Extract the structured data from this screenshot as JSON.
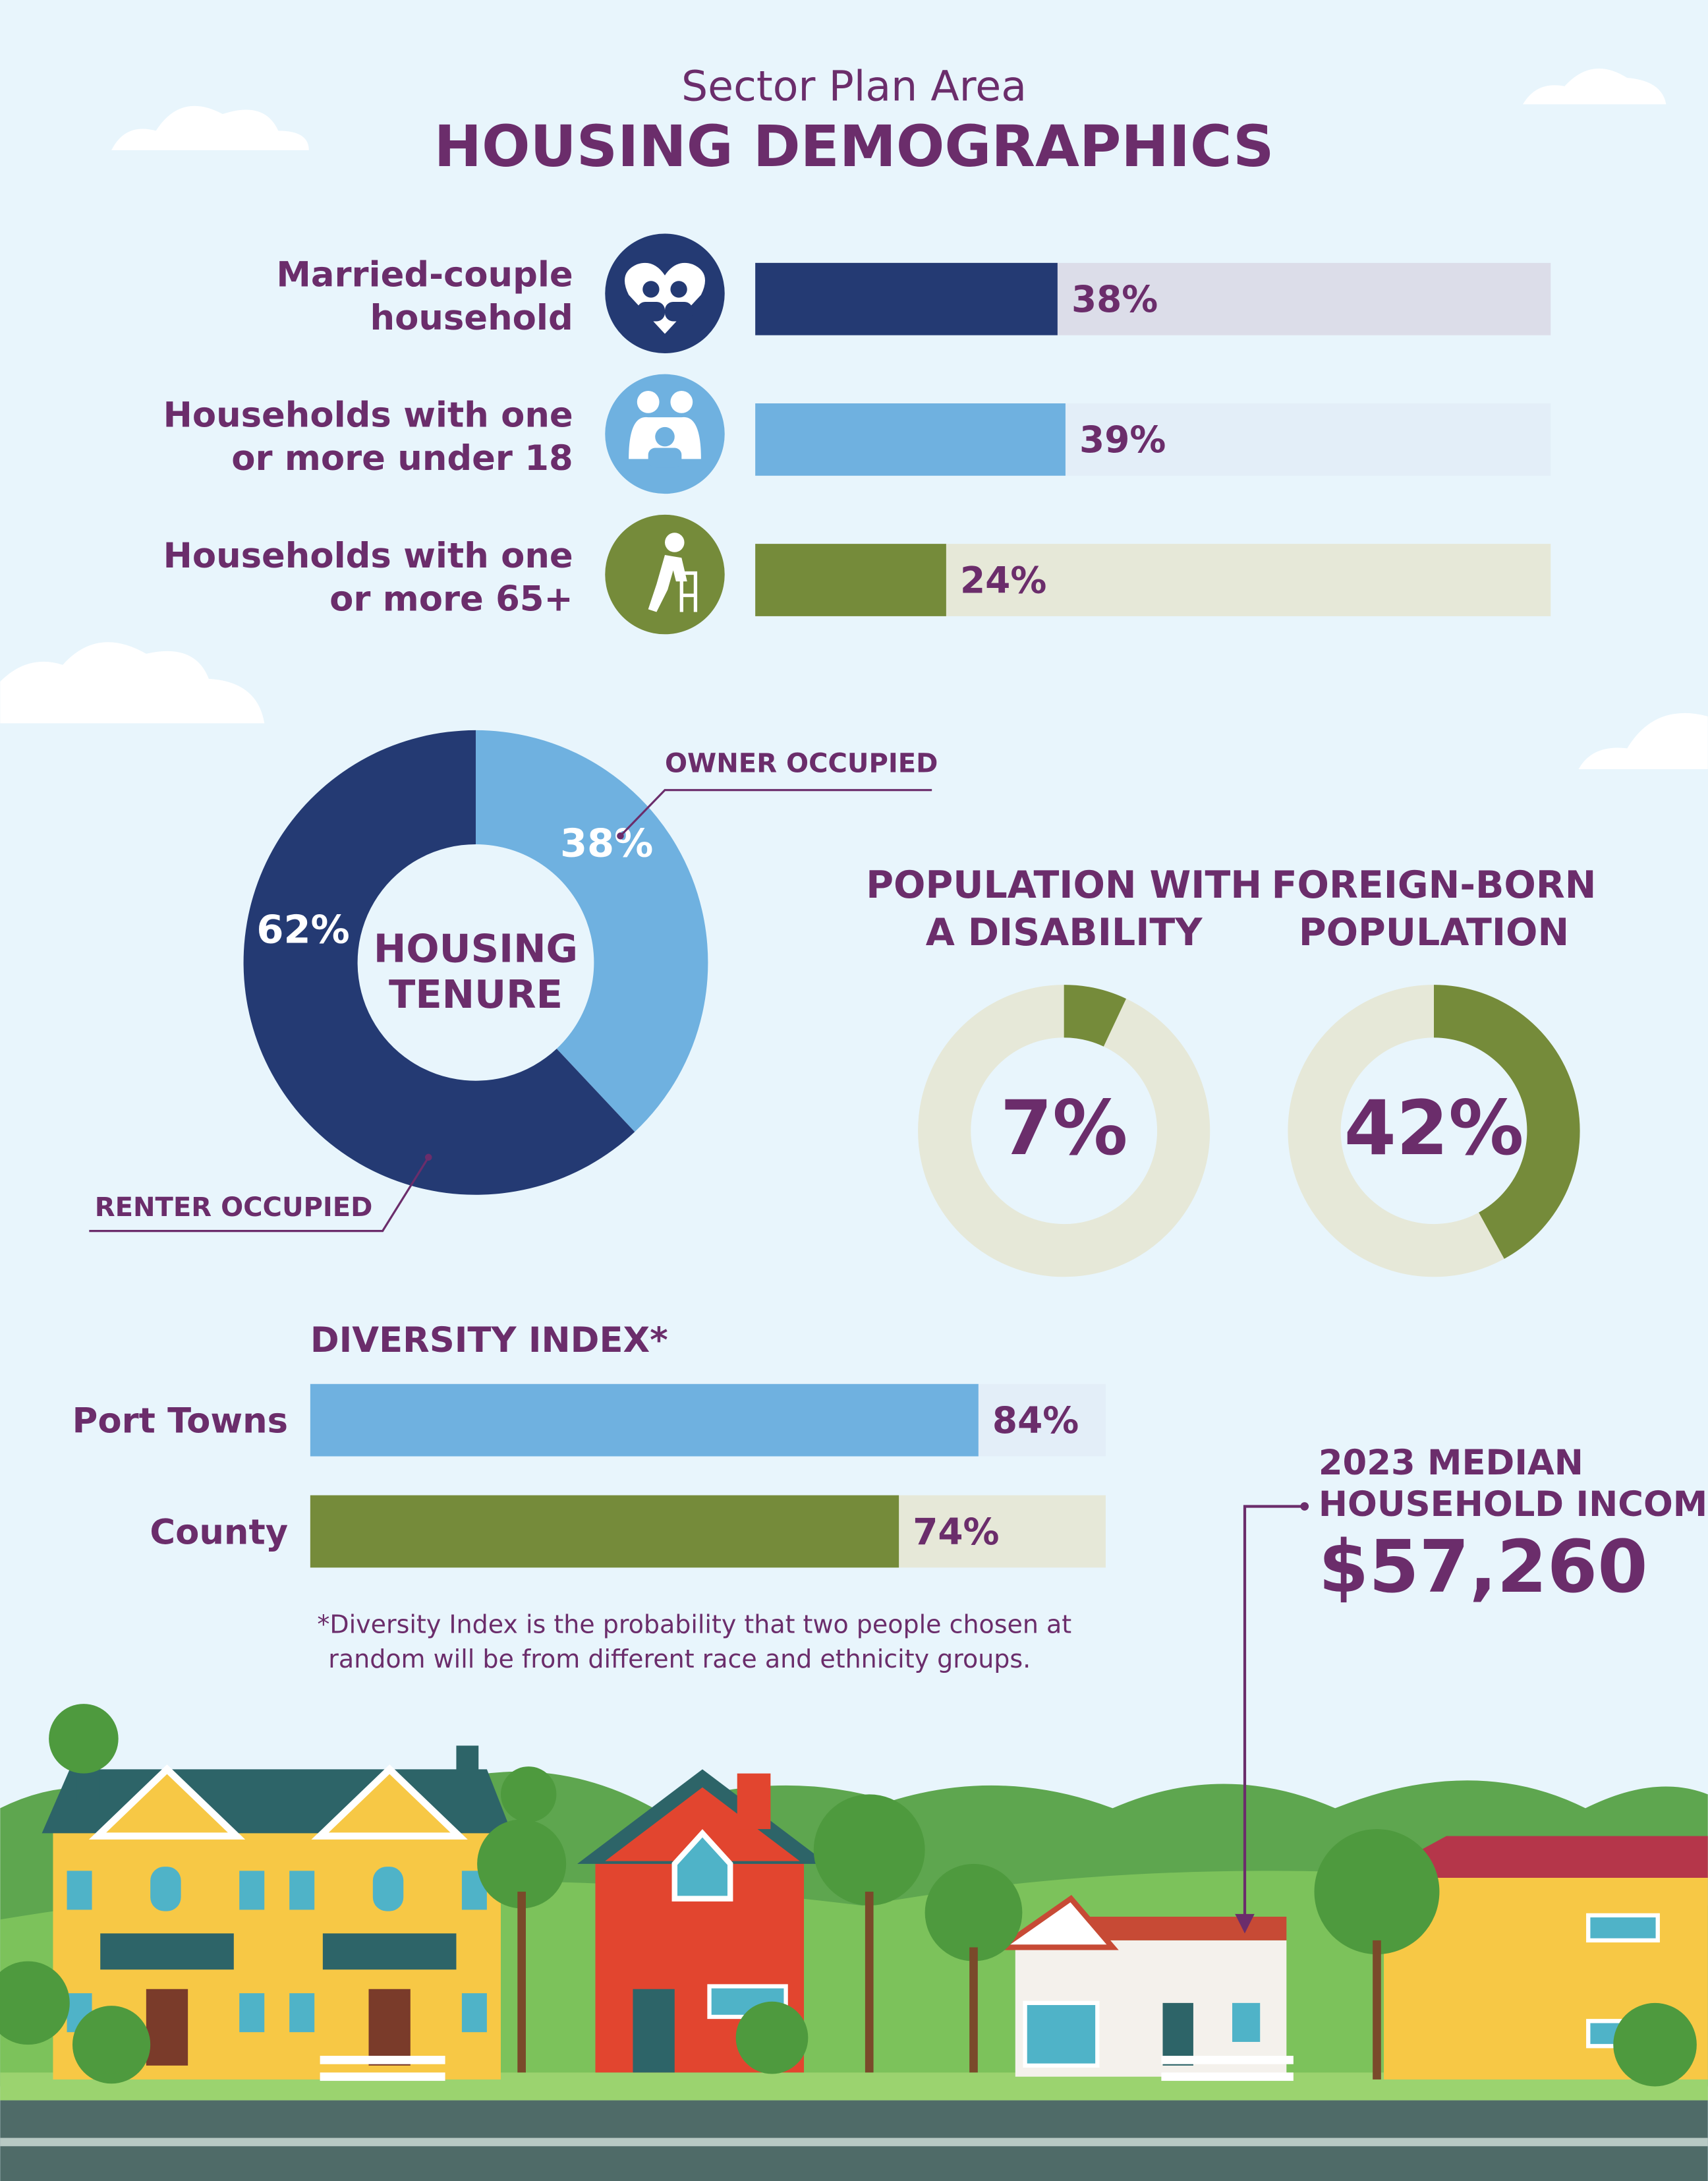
{
  "header": {
    "subtitle": "Sector Plan Area",
    "title": "HOUSING DEMOGRAPHICS"
  },
  "chart_data": [
    {
      "type": "bar",
      "categories": [
        [
          "Married-couple",
          "household"
        ],
        [
          "Households with one",
          "or more under 18"
        ],
        [
          "Households with one",
          "or more 65+"
        ]
      ],
      "values": [
        38,
        39,
        24
      ],
      "value_labels": [
        "38%",
        "39%",
        "24%"
      ],
      "colors": [
        "#243a73",
        "#6fb1e0",
        "#758b3a"
      ],
      "track_colors": [
        "#dcdde9",
        "#e3eef8",
        "#e6e8d8"
      ],
      "xlim": [
        0,
        100
      ]
    },
    {
      "type": "donut",
      "title": [
        "HOUSING",
        "TENURE"
      ],
      "categories": [
        "OWNER OCCUPIED",
        "RENTER OCCUPIED"
      ],
      "values": [
        38,
        62
      ],
      "value_labels": [
        "38%",
        "62%"
      ],
      "colors": [
        "#6fb1e0",
        "#243a73"
      ]
    },
    {
      "type": "gauge",
      "title": [
        "POPULATION WITH",
        "A DISABILITY"
      ],
      "values": [
        7
      ],
      "value_labels": [
        "7%"
      ],
      "color": "#758b3a",
      "track_color": "#e6e8d8",
      "scale": [
        0,
        100
      ]
    },
    {
      "type": "gauge",
      "title": [
        "FOREIGN-BORN",
        "POPULATION"
      ],
      "values": [
        42
      ],
      "value_labels": [
        "42%"
      ],
      "color": "#758b3a",
      "track_color": "#e6e8d8",
      "scale": [
        0,
        100
      ]
    },
    {
      "type": "bar",
      "title": "DIVERSITY INDEX*",
      "categories": [
        "Port Towns",
        "County"
      ],
      "values": [
        84,
        74
      ],
      "value_labels": [
        "84%",
        "74%"
      ],
      "colors": [
        "#6fb1e0",
        "#758b3a"
      ],
      "track_colors": [
        "#e3eef8",
        "#e6e8d8"
      ],
      "xlim": [
        0,
        100
      ],
      "note": [
        "*Diversity Index is the probability that two people chosen at",
        "random will be from different race and ethnicity groups."
      ]
    }
  ],
  "income": {
    "label": [
      "2023 MEDIAN",
      "HOUSEHOLD INCOME"
    ],
    "value": "$57,260"
  }
}
